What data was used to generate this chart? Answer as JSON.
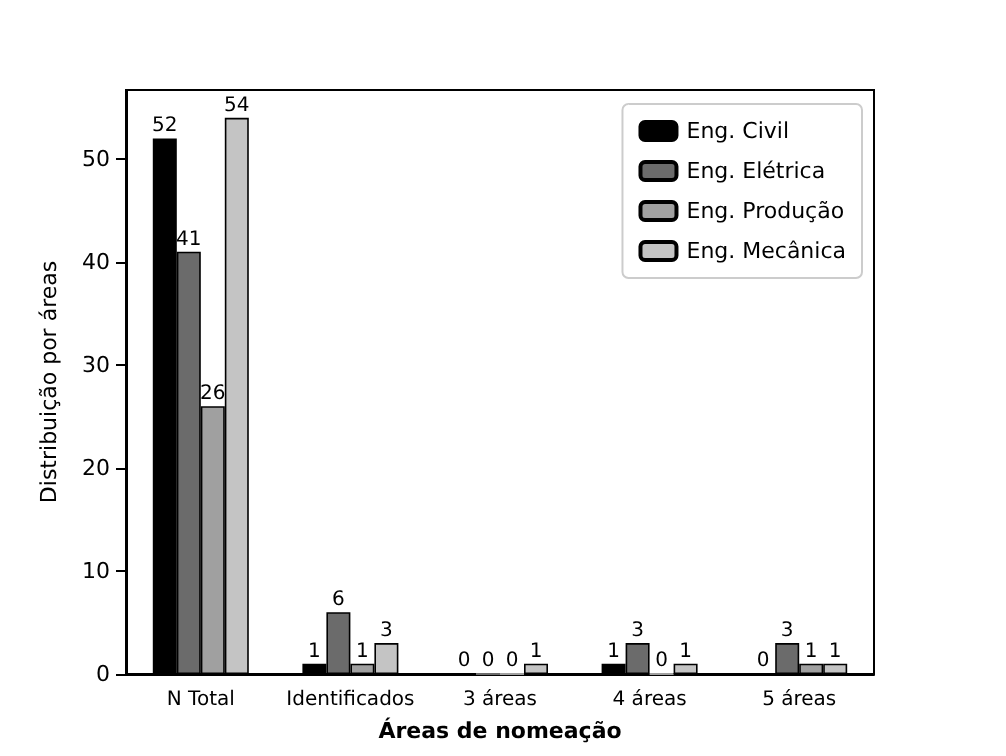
{
  "chart_data": {
    "type": "bar",
    "xlabel": "Áreas de nomeação",
    "ylabel": "Distribuição por áreas",
    "categories": [
      "N Total",
      "Identificados",
      "3 áreas",
      "4 áreas",
      "5 áreas"
    ],
    "series": [
      {
        "name": "Eng. Civil",
        "color": "#000000",
        "values": [
          52,
          1,
          0,
          1,
          0
        ]
      },
      {
        "name": "Eng. Elétrica",
        "color": "#6b6b6b",
        "values": [
          41,
          6,
          0,
          3,
          3
        ]
      },
      {
        "name": "Eng. Produção",
        "color": "#a0a0a0",
        "values": [
          26,
          1,
          0,
          0,
          1
        ]
      },
      {
        "name": "Eng. Mecânica",
        "color": "#c4c4c4",
        "values": [
          54,
          3,
          1,
          1,
          1
        ]
      }
    ],
    "ylim": [
      0,
      56.7
    ],
    "yticks": [
      0,
      10,
      20,
      30,
      40,
      50
    ],
    "data_labels": true,
    "legend": "top right",
    "grid": false
  }
}
